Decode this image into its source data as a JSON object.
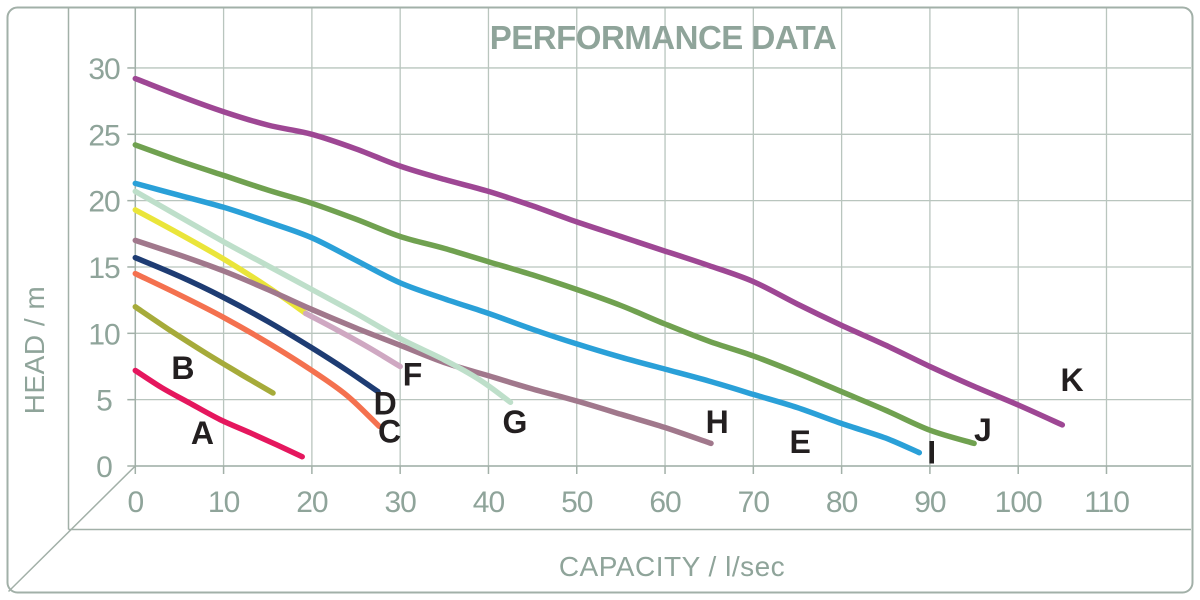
{
  "title": "PERFORMANCE DATA",
  "colors": {
    "text": "#8fa49a",
    "grid": "#b9c5be",
    "frame": "#a2b0a8",
    "letter": "#231f20",
    "background": "#ffffff"
  },
  "chart_data": {
    "type": "line",
    "title": "PERFORMANCE DATA",
    "xlabel": "CAPACITY / l/sec",
    "ylabel": "HEAD / m",
    "xlim": [
      0,
      120
    ],
    "ylim": [
      0,
      34.5
    ],
    "x_ticks": [
      0,
      10,
      20,
      30,
      40,
      50,
      60,
      70,
      80,
      90,
      100,
      110
    ],
    "y_ticks": [
      0,
      5,
      10,
      15,
      20,
      25,
      30
    ],
    "grid": true,
    "legend_position": "none",
    "series": [
      {
        "name": "A",
        "color": "#e5175e",
        "points": [
          [
            0,
            7.2
          ],
          [
            3,
            5.9
          ],
          [
            6,
            4.8
          ],
          [
            9.6,
            3.5
          ],
          [
            13,
            2.5
          ],
          [
            16,
            1.6
          ],
          [
            18.9,
            0.7
          ]
        ]
      },
      {
        "name": "B",
        "color": "#a6ab3a",
        "points": [
          [
            0,
            12.0
          ],
          [
            4,
            10.2
          ],
          [
            8,
            8.5
          ],
          [
            12,
            6.9
          ],
          [
            15.6,
            5.5
          ]
        ]
      },
      {
        "name": "C",
        "color": "#f4714f",
        "points": [
          [
            0,
            14.5
          ],
          [
            5,
            12.9
          ],
          [
            10,
            11.2
          ],
          [
            15,
            9.3
          ],
          [
            20,
            7.2
          ],
          [
            24,
            5.3
          ],
          [
            27.6,
            3.0
          ]
        ]
      },
      {
        "name": "D",
        "color": "#1e3c73",
        "points": [
          [
            0,
            15.7
          ],
          [
            5,
            14.3
          ],
          [
            10,
            12.7
          ],
          [
            15,
            10.9
          ],
          [
            20,
            8.9
          ],
          [
            24,
            7.2
          ],
          [
            27.5,
            5.6
          ]
        ]
      },
      {
        "name": "E",
        "color": "#eae53a",
        "points": [
          [
            0,
            19.3
          ],
          [
            5,
            17.5
          ],
          [
            10,
            15.6
          ],
          [
            15,
            13.5
          ],
          [
            19.3,
            11.5
          ]
        ]
      },
      {
        "name": "F",
        "color": "#cfa8c2",
        "points": [
          [
            19.3,
            11.5
          ],
          [
            23,
            10.2
          ],
          [
            26.5,
            8.9
          ],
          [
            30,
            7.5
          ]
        ]
      },
      {
        "name": "H",
        "color": "#a1788c",
        "points": [
          [
            0,
            17.0
          ],
          [
            5,
            15.9
          ],
          [
            10,
            14.7
          ],
          [
            15,
            13.3
          ],
          [
            19.3,
            12.0
          ],
          [
            25,
            10.4
          ],
          [
            30,
            9.1
          ],
          [
            35,
            7.8
          ],
          [
            40,
            6.8
          ],
          [
            45,
            5.8
          ],
          [
            50,
            4.9
          ],
          [
            55,
            3.9
          ],
          [
            60,
            2.9
          ],
          [
            65.2,
            1.7
          ]
        ]
      },
      {
        "name": "G",
        "color": "#bedfca",
        "points": [
          [
            0,
            20.7
          ],
          [
            5,
            18.8
          ],
          [
            10,
            16.9
          ],
          [
            15,
            15.1
          ],
          [
            20,
            13.3
          ],
          [
            25,
            11.5
          ],
          [
            30,
            9.6
          ],
          [
            35,
            8.0
          ],
          [
            39,
            6.5
          ],
          [
            42.5,
            4.8
          ]
        ]
      },
      {
        "name": "I",
        "color": "#2aa0d8",
        "points": [
          [
            0,
            21.3
          ],
          [
            5,
            20.4
          ],
          [
            10,
            19.5
          ],
          [
            15,
            18.4
          ],
          [
            20,
            17.2
          ],
          [
            25,
            15.5
          ],
          [
            30,
            13.8
          ],
          [
            35,
            12.6
          ],
          [
            40,
            11.5
          ],
          [
            45,
            10.3
          ],
          [
            50,
            9.2
          ],
          [
            55,
            8.2
          ],
          [
            60,
            7.3
          ],
          [
            65,
            6.4
          ],
          [
            70,
            5.4
          ],
          [
            75,
            4.4
          ],
          [
            80,
            3.2
          ],
          [
            85,
            2.1
          ],
          [
            88.8,
            1.0
          ]
        ]
      },
      {
        "name": "J",
        "color": "#70a150",
        "points": [
          [
            0,
            24.2
          ],
          [
            5,
            23.0
          ],
          [
            10,
            21.9
          ],
          [
            15,
            20.8
          ],
          [
            20,
            19.8
          ],
          [
            25,
            18.6
          ],
          [
            30,
            17.3
          ],
          [
            35,
            16.4
          ],
          [
            40,
            15.4
          ],
          [
            45,
            14.4
          ],
          [
            50,
            13.3
          ],
          [
            55,
            12.1
          ],
          [
            60,
            10.7
          ],
          [
            65,
            9.4
          ],
          [
            70,
            8.3
          ],
          [
            75,
            7.0
          ],
          [
            80,
            5.6
          ],
          [
            85,
            4.2
          ],
          [
            90,
            2.7
          ],
          [
            95,
            1.7
          ]
        ]
      },
      {
        "name": "K",
        "color": "#9e4794",
        "points": [
          [
            0,
            29.2
          ],
          [
            5,
            27.9
          ],
          [
            10,
            26.7
          ],
          [
            15,
            25.7
          ],
          [
            20,
            25.0
          ],
          [
            25,
            23.9
          ],
          [
            30,
            22.6
          ],
          [
            35,
            21.6
          ],
          [
            40,
            20.7
          ],
          [
            45,
            19.6
          ],
          [
            50,
            18.4
          ],
          [
            55,
            17.3
          ],
          [
            60,
            16.2
          ],
          [
            65,
            15.1
          ],
          [
            70,
            13.9
          ],
          [
            75,
            12.2
          ],
          [
            80,
            10.6
          ],
          [
            85,
            9.1
          ],
          [
            90,
            7.5
          ],
          [
            95,
            6.0
          ],
          [
            100,
            4.6
          ],
          [
            105,
            3.1
          ]
        ]
      }
    ],
    "curve_letters": [
      {
        "letter": "A",
        "x": 7.6,
        "y": 2.5
      },
      {
        "letter": "B",
        "x": 5.4,
        "y": 7.4
      },
      {
        "letter": "C",
        "x": 28.8,
        "y": 2.6
      },
      {
        "letter": "D",
        "x": 28.3,
        "y": 4.7
      },
      {
        "letter": "E",
        "x": 75.3,
        "y": 1.8
      },
      {
        "letter": "F",
        "x": 31.4,
        "y": 6.9
      },
      {
        "letter": "G",
        "x": 43.0,
        "y": 3.3
      },
      {
        "letter": "H",
        "x": 65.9,
        "y": 3.3
      },
      {
        "letter": "I",
        "x": 90.2,
        "y": 1.0
      },
      {
        "letter": "J",
        "x": 96.0,
        "y": 2.7
      },
      {
        "letter": "K",
        "x": 106.1,
        "y": 6.5
      }
    ]
  }
}
